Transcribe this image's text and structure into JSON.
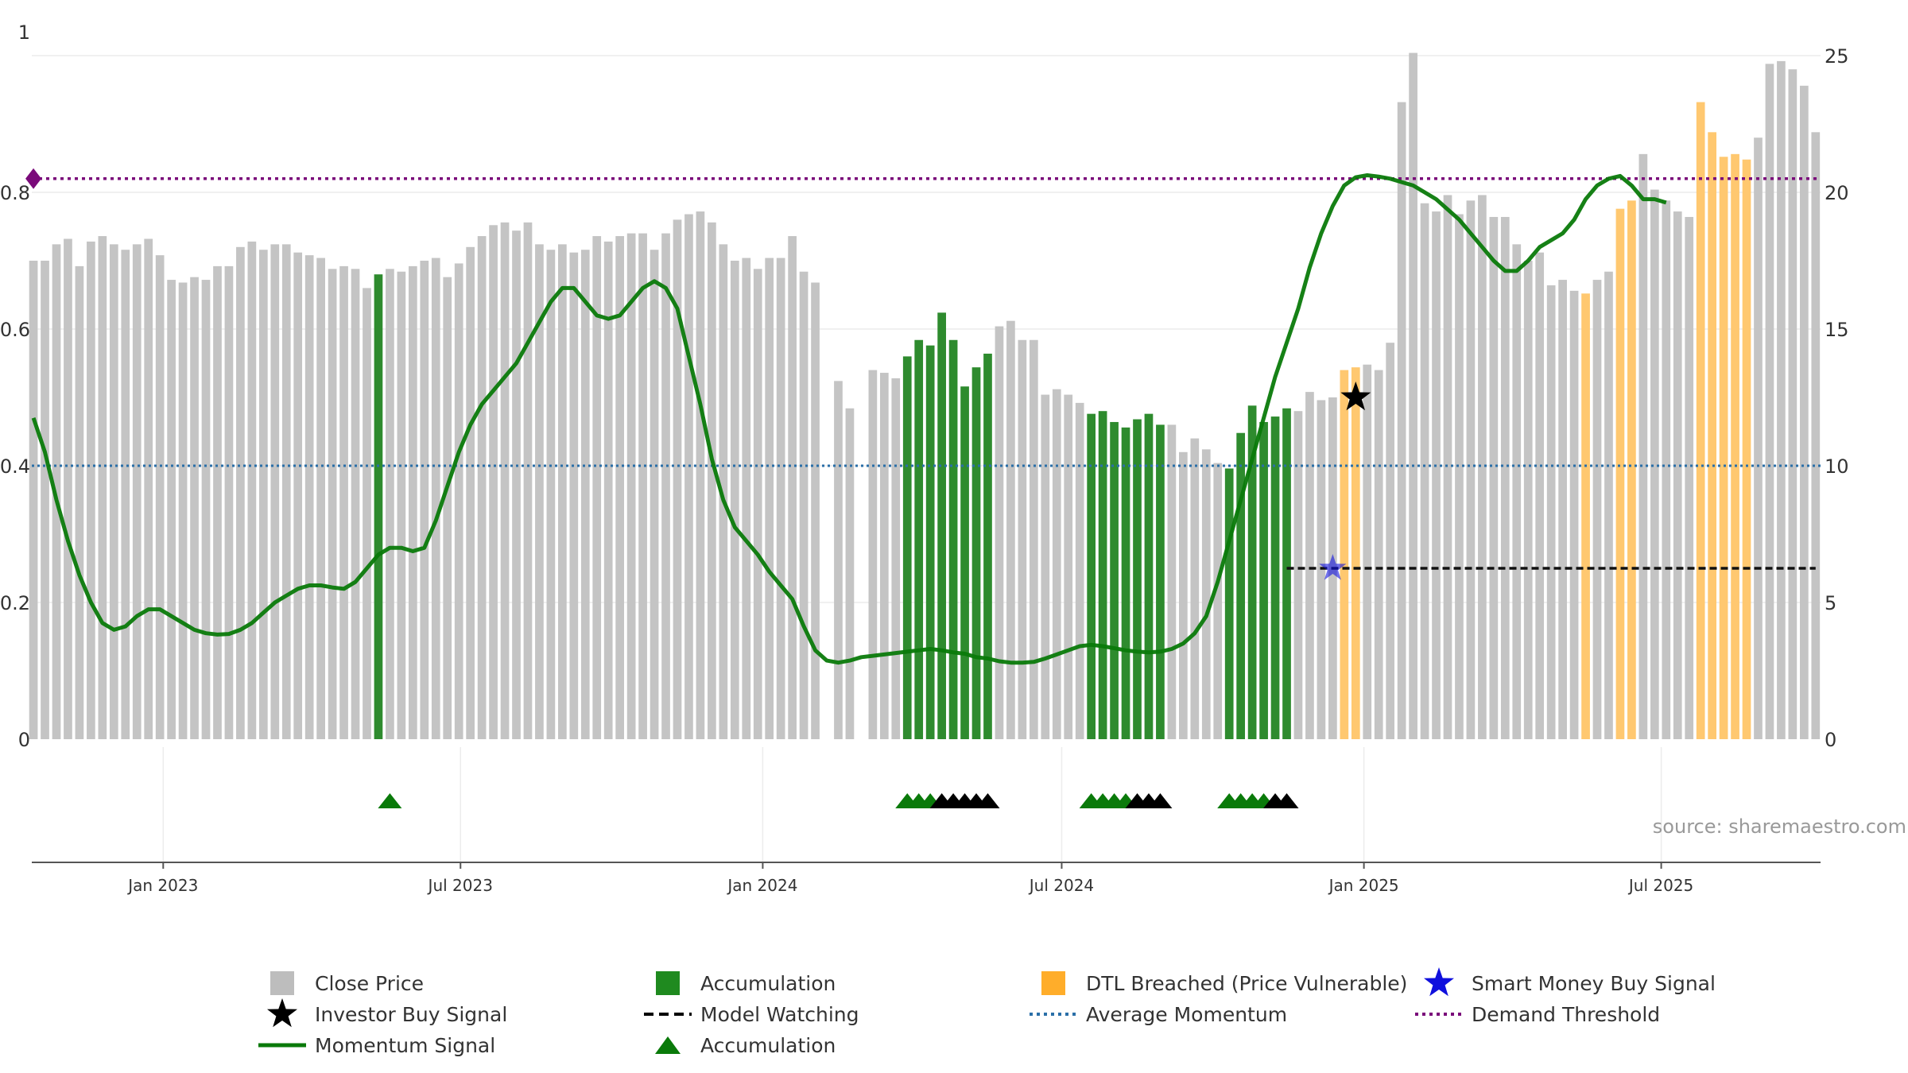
{
  "chart_data": {
    "type": "bar",
    "title": "",
    "xlabel": "",
    "left_ylabel": "",
    "right_ylabel": "",
    "x_range": [
      "2022-10-13",
      "2025-10-06"
    ],
    "left_ylim": [
      0,
      1
    ],
    "right_ylim": [
      0,
      25
    ],
    "left_ticks": [
      0,
      0.2,
      0.4,
      0.6,
      0.8,
      1
    ],
    "left_tick_labels": [
      "0",
      "0.2",
      "0.4",
      "0.6",
      "0.8",
      "1"
    ],
    "right_ticks": [
      0,
      5,
      10,
      15,
      20,
      25
    ],
    "x_ticks": [
      {
        "date": "2023-01-01",
        "label": "Jan 2023"
      },
      {
        "date": "2023-07-01",
        "label": "Jul 2023"
      },
      {
        "date": "2024-01-01",
        "label": "Jan 2024"
      },
      {
        "date": "2024-07-01",
        "label": "Jul 2024"
      },
      {
        "date": "2025-01-01",
        "label": "Jan 2025"
      },
      {
        "date": "2025-07-01",
        "label": "Jul 2025"
      }
    ],
    "grid": true,
    "legend_position": "bottom",
    "close_price": {
      "start_date": "2022-10-14",
      "interval_days": 7,
      "values": [
        17.5,
        17.5,
        18.1,
        18.3,
        17.3,
        18.2,
        18.4,
        18.1,
        17.9,
        18.1,
        18.3,
        17.7,
        16.8,
        16.7,
        16.9,
        16.8,
        17.3,
        17.3,
        18.0,
        18.2,
        17.9,
        18.1,
        18.1,
        17.8,
        17.7,
        17.6,
        17.2,
        17.3,
        17.2,
        16.5,
        17.0,
        17.2,
        17.1,
        17.3,
        17.5,
        17.6,
        16.9,
        17.4,
        18.0,
        18.4,
        18.8,
        18.9,
        18.6,
        18.9,
        18.1,
        17.9,
        18.1,
        17.8,
        17.9,
        18.4,
        18.2,
        18.4,
        18.5,
        18.5,
        17.9,
        18.5,
        19.0,
        19.2,
        19.3,
        18.9,
        18.1,
        17.5,
        17.6,
        17.2,
        17.6,
        17.6,
        18.4,
        17.1,
        16.7,
        null,
        13.1,
        12.1,
        null,
        13.5,
        13.4,
        13.2,
        14.0,
        14.6,
        14.4,
        15.6,
        14.6,
        12.9,
        13.6,
        14.1,
        15.1,
        15.3,
        14.6,
        14.6,
        12.6,
        12.8,
        12.6,
        12.3,
        11.9,
        12.0,
        11.6,
        11.4,
        11.7,
        11.9,
        11.5,
        11.5,
        10.5,
        11.0,
        10.6,
        10.1,
        9.9,
        11.2,
        12.2,
        11.6,
        11.8,
        12.1,
        12.0,
        12.7,
        12.4,
        12.5,
        13.5,
        13.6,
        13.7,
        13.5,
        14.5,
        23.3,
        25.1,
        19.6,
        19.3,
        19.9,
        19.2,
        19.7,
        19.9,
        19.1,
        19.1,
        18.1,
        17.5,
        17.8,
        16.6,
        16.8,
        16.4,
        16.3,
        16.8,
        17.1,
        19.4,
        19.7,
        21.4,
        20.1,
        19.7,
        19.3,
        19.1,
        23.3,
        22.2,
        21.3,
        21.4,
        21.2,
        22.0,
        24.7,
        24.8,
        24.5,
        23.9,
        22.2
      ],
      "status": "GGGGGGGGGGGGGGGGGGGGGGGGGGGGGGAGGGGGGGGGGGGGGGGGGGGGGGGGGGGGGGGGGGGGGGGGGGGGAAAAAAAAGGGGGGGGAAAAAAAGGGGGAAAAAAGGGGOOGGGGGGGGGGGGGGGGGGGOGGOOGGGGGOOOOO"
    },
    "momentum_signal": {
      "start_date": "2022-10-14",
      "interval_days": 7,
      "values": [
        0.47,
        0.42,
        0.35,
        0.29,
        0.24,
        0.2,
        0.17,
        0.16,
        0.165,
        0.18,
        0.19,
        0.19,
        0.18,
        0.17,
        0.16,
        0.155,
        0.153,
        0.154,
        0.16,
        0.17,
        0.185,
        0.2,
        0.21,
        0.22,
        0.225,
        0.225,
        0.222,
        0.22,
        0.23,
        0.25,
        0.27,
        0.28,
        0.28,
        0.275,
        0.28,
        0.32,
        0.37,
        0.42,
        0.46,
        0.49,
        0.51,
        0.53,
        0.55,
        0.58,
        0.61,
        0.64,
        0.66,
        0.66,
        0.64,
        0.62,
        0.615,
        0.62,
        0.64,
        0.66,
        0.67,
        0.66,
        0.63,
        0.56,
        0.49,
        0.41,
        0.35,
        0.31,
        0.29,
        0.27,
        0.245,
        0.225,
        0.205,
        0.165,
        0.13,
        0.115,
        0.112,
        0.115,
        0.12,
        0.122,
        0.124,
        0.126,
        0.128,
        0.13,
        0.132,
        0.13,
        0.127,
        0.125,
        0.12,
        0.118,
        0.114,
        0.112,
        0.112,
        0.113,
        0.118,
        0.124,
        0.13,
        0.136,
        0.138,
        0.136,
        0.133,
        0.13,
        0.128,
        0.127,
        0.128,
        0.132,
        0.14,
        0.155,
        0.18,
        0.23,
        0.29,
        0.35,
        0.41,
        0.47,
        0.53,
        0.58,
        0.63,
        0.69,
        0.74,
        0.78,
        0.81,
        0.822,
        0.825,
        0.823,
        0.82,
        0.815,
        0.81,
        0.8,
        0.79,
        0.775,
        0.76,
        0.74,
        0.72,
        0.7,
        0.685,
        0.685,
        0.7,
        0.72,
        0.73,
        0.74,
        0.76,
        0.79,
        0.81,
        0.82,
        0.824,
        0.81,
        0.79,
        0.79,
        0.785
      ],
      "mark_dates": [
        "2023-10-06",
        "2024-12-20"
      ]
    },
    "average_momentum": 0.4,
    "demand_threshold": 0.82,
    "model_watching": {
      "start_date": "2024-11-15",
      "end_date": "2025-10-03",
      "value": 0.25
    },
    "investor_buy_signal": [
      {
        "date": "2024-12-27",
        "value": 0.5
      }
    ],
    "smart_money_buy_signal": [
      {
        "date": "2024-12-13",
        "value": 0.25
      }
    ],
    "demand_threshold_marker": {
      "date": "2022-10-14",
      "value": 0.82
    },
    "accumulation_signals": {
      "dates": [
        "2023-05-19",
        "2024-03-29",
        "2024-04-05",
        "2024-04-12",
        "2024-04-19",
        "2024-04-26",
        "2024-05-03",
        "2024-05-10",
        "2024-05-17",
        "2024-07-19",
        "2024-07-26",
        "2024-08-02",
        "2024-08-09",
        "2024-08-16",
        "2024-08-23",
        "2024-08-30",
        "2024-10-11",
        "2024-10-18",
        "2024-10-25",
        "2024-11-01",
        "2024-11-08",
        "2024-11-15"
      ],
      "kinds": [
        "G",
        "G",
        "G",
        "G",
        "B",
        "B",
        "B",
        "B",
        "B",
        "G",
        "G",
        "G",
        "G",
        "B",
        "B",
        "B",
        "G",
        "G",
        "G",
        "G",
        "B",
        "B"
      ]
    },
    "colors": {
      "close_price": "#c4c4c4",
      "accumulation": "#2e8b2e",
      "dtl_breached": "#ffc870",
      "momentum": "#0a7a0a",
      "average_momentum": "#2a6fa8",
      "demand_threshold": "#7a0a7a",
      "model_watching": "#111111",
      "investor_buy": "#000000",
      "smart_money": "#1010dd",
      "accumulation_triangle": "#0a7a0a",
      "watching_triangle": "#000000"
    },
    "source_text": "source: sharemaestro.com",
    "legend": [
      {
        "label": "Close Price",
        "symbol": "square",
        "color": "#bdbdbd"
      },
      {
        "label": "Accumulation",
        "symbol": "square",
        "color": "#1f8a1f"
      },
      {
        "label": "DTL Breached (Price Vulnerable)",
        "symbol": "square",
        "color": "#ffad2a"
      },
      {
        "label": "Smart Money Buy Signal",
        "symbol": "star",
        "color": "#1010dd"
      },
      {
        "label": "Investor Buy Signal",
        "symbol": "star",
        "color": "#000000"
      },
      {
        "label": "Model Watching",
        "symbol": "dash",
        "color": "#000000"
      },
      {
        "label": "Average Momentum",
        "symbol": "dot",
        "color": "#2a6fa8"
      },
      {
        "label": "Demand Threshold",
        "symbol": "dot",
        "color": "#7a0a7a"
      },
      {
        "label": "Momentum Signal",
        "symbol": "line",
        "color": "#0a7a0a"
      },
      {
        "label": "Accumulation",
        "symbol": "triangle",
        "color": "#0a7a0a"
      }
    ]
  }
}
